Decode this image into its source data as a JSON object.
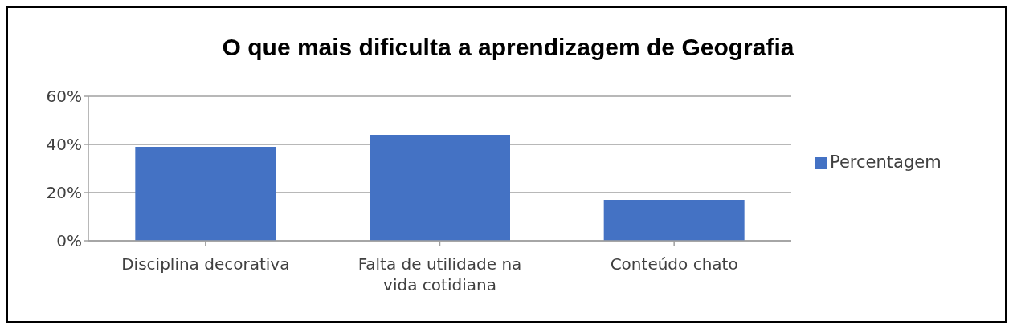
{
  "chart_data": {
    "type": "bar",
    "title": "O que mais dificulta a aprendizagem de Geografia",
    "categories": [
      "Disciplina decorativa",
      "Falta de utilidade na vida cotidiana",
      "Conteúdo chato"
    ],
    "series": [
      {
        "name": "Percentagem",
        "color": "#4472c4",
        "values": [
          39,
          44,
          17
        ]
      }
    ],
    "ylim": [
      0,
      60
    ],
    "yticks": [
      {
        "value": 0,
        "label": "0%"
      },
      {
        "value": 20,
        "label": "20%"
      },
      {
        "value": 40,
        "label": "40%"
      },
      {
        "value": 60,
        "label": "60%"
      }
    ],
    "grid": "y",
    "legend": "right"
  }
}
